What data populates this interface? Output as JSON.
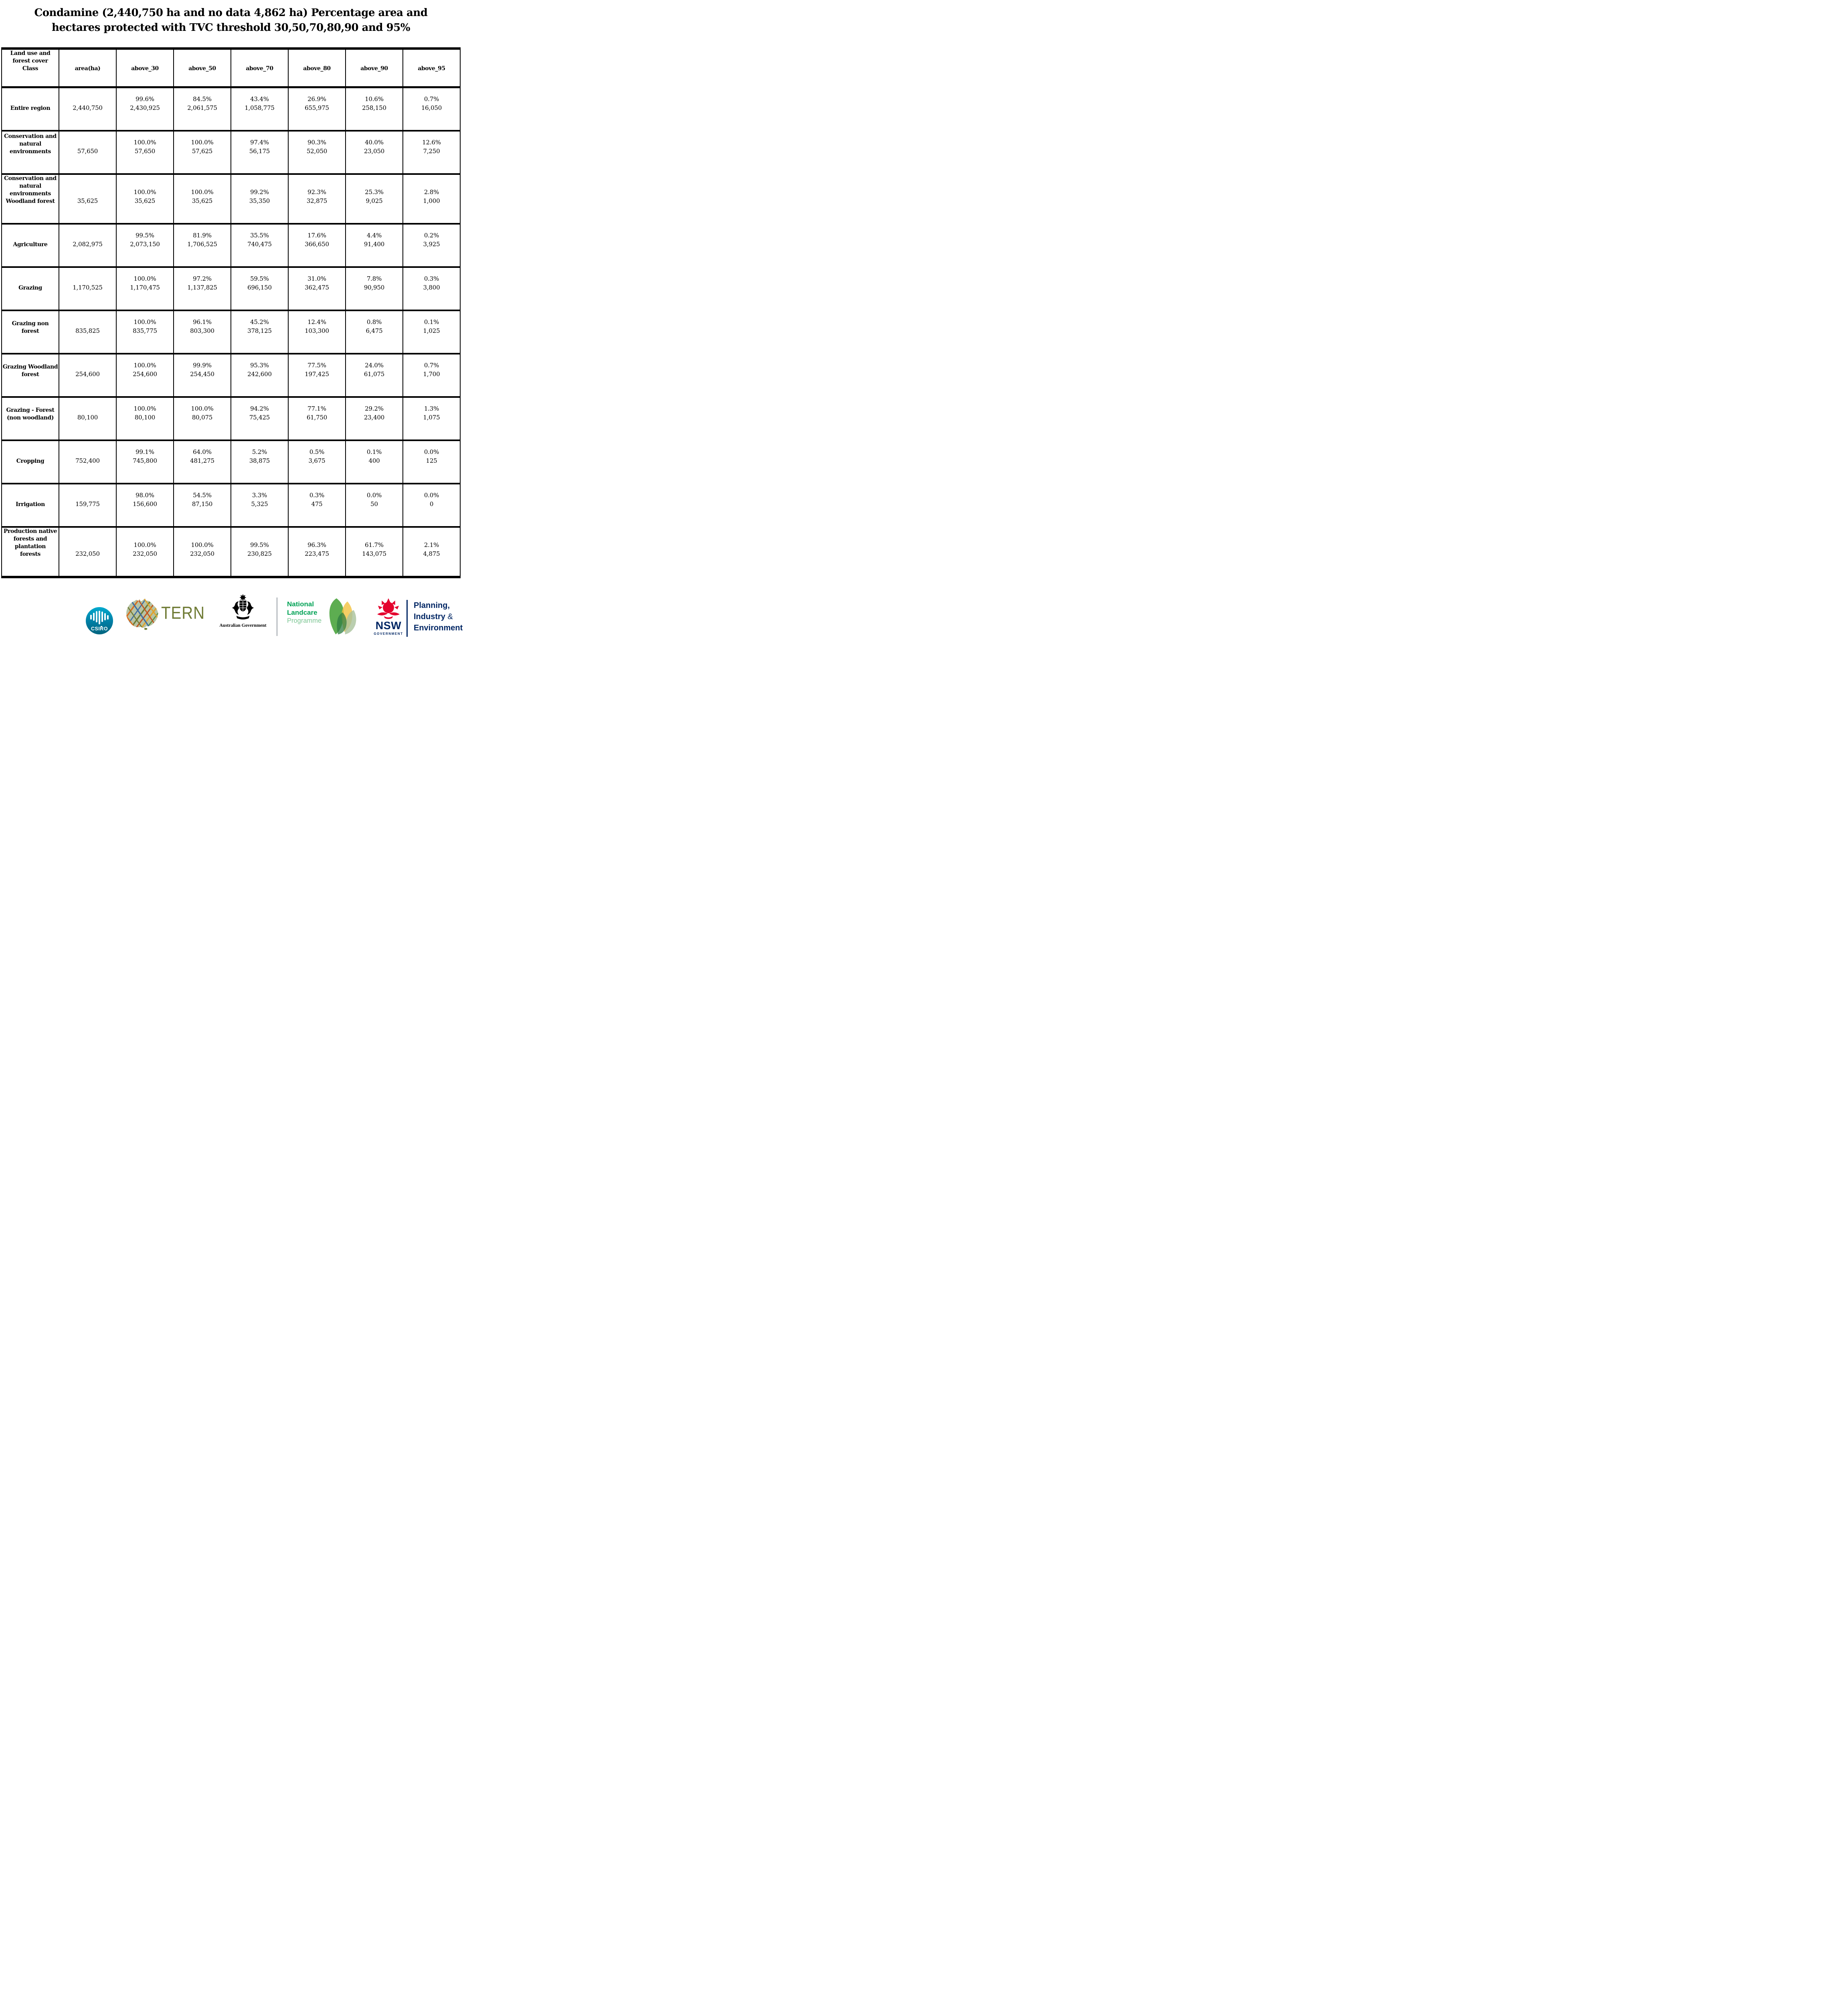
{
  "title": {
    "lines": [
      "Condamine (2,440,750 ha and no data 4,862 ha) Percentage area and",
      "hectares protected with TVC threshold 30,50,70,80,90 and 95%"
    ]
  },
  "table": {
    "header": {
      "class_col_lines": [
        "Land use and",
        "forest cover",
        "Class"
      ],
      "cols": [
        "area(ha)",
        "above_30",
        "above_50",
        "above_70",
        "above_80",
        "above_90",
        "above_95"
      ]
    },
    "rows": [
      {
        "label_lines": [
          "Entire region"
        ],
        "area": "2,440,750",
        "cells": [
          [
            "99.6%",
            "2,430,925"
          ],
          [
            "84.5%",
            "2,061,575"
          ],
          [
            "43.4%",
            "1,058,775"
          ],
          [
            "26.9%",
            "655,975"
          ],
          [
            "10.6%",
            "258,150"
          ],
          [
            "0.7%",
            "16,050"
          ]
        ]
      },
      {
        "label_lines": [
          "Conservation and",
          "natural",
          "environments"
        ],
        "area": "57,650",
        "cells": [
          [
            "100.0%",
            "57,650"
          ],
          [
            "100.0%",
            "57,625"
          ],
          [
            "97.4%",
            "56,175"
          ],
          [
            "90.3%",
            "52,050"
          ],
          [
            "40.0%",
            "23,050"
          ],
          [
            "12.6%",
            "7,250"
          ]
        ]
      },
      {
        "label_lines": [
          "Conservation and",
          "natural",
          "environments",
          "Woodland forest"
        ],
        "area": "35,625",
        "cells": [
          [
            "100.0%",
            "35,625"
          ],
          [
            "100.0%",
            "35,625"
          ],
          [
            "99.2%",
            "35,350"
          ],
          [
            "92.3%",
            "32,875"
          ],
          [
            "25.3%",
            "9,025"
          ],
          [
            "2.8%",
            "1,000"
          ]
        ]
      },
      {
        "label_lines": [
          "Agriculture"
        ],
        "area": "2,082,975",
        "cells": [
          [
            "99.5%",
            "2,073,150"
          ],
          [
            "81.9%",
            "1,706,525"
          ],
          [
            "35.5%",
            "740,475"
          ],
          [
            "17.6%",
            "366,650"
          ],
          [
            "4.4%",
            "91,400"
          ],
          [
            "0.2%",
            "3,925"
          ]
        ]
      },
      {
        "label_lines": [
          "Grazing"
        ],
        "area": "1,170,525",
        "cells": [
          [
            "100.0%",
            "1,170,475"
          ],
          [
            "97.2%",
            "1,137,825"
          ],
          [
            "59.5%",
            "696,150"
          ],
          [
            "31.0%",
            "362,475"
          ],
          [
            "7.8%",
            "90,950"
          ],
          [
            "0.3%",
            "3,800"
          ]
        ]
      },
      {
        "label_lines": [
          "Grazing non",
          "forest"
        ],
        "area": "835,825",
        "cells": [
          [
            "100.0%",
            "835,775"
          ],
          [
            "96.1%",
            "803,300"
          ],
          [
            "45.2%",
            "378,125"
          ],
          [
            "12.4%",
            "103,300"
          ],
          [
            "0.8%",
            "6,475"
          ],
          [
            "0.1%",
            "1,025"
          ]
        ]
      },
      {
        "label_lines": [
          "Grazing Woodland",
          "forest"
        ],
        "area": "254,600",
        "cells": [
          [
            "100.0%",
            "254,600"
          ],
          [
            "99.9%",
            "254,450"
          ],
          [
            "95.3%",
            "242,600"
          ],
          [
            "77.5%",
            "197,425"
          ],
          [
            "24.0%",
            "61,075"
          ],
          [
            "0.7%",
            "1,700"
          ]
        ]
      },
      {
        "label_lines": [
          "Grazing - Forest",
          "(non woodland)"
        ],
        "area": "80,100",
        "cells": [
          [
            "100.0%",
            "80,100"
          ],
          [
            "100.0%",
            "80,075"
          ],
          [
            "94.2%",
            "75,425"
          ],
          [
            "77.1%",
            "61,750"
          ],
          [
            "29.2%",
            "23,400"
          ],
          [
            "1.3%",
            "1,075"
          ]
        ]
      },
      {
        "label_lines": [
          "Cropping"
        ],
        "area": "752,400",
        "cells": [
          [
            "99.1%",
            "745,800"
          ],
          [
            "64.0%",
            "481,275"
          ],
          [
            "5.2%",
            "38,875"
          ],
          [
            "0.5%",
            "3,675"
          ],
          [
            "0.1%",
            "400"
          ],
          [
            "0.0%",
            "125"
          ]
        ]
      },
      {
        "label_lines": [
          "Irrigation"
        ],
        "area": "159,775",
        "cells": [
          [
            "98.0%",
            "156,600"
          ],
          [
            "54.5%",
            "87,150"
          ],
          [
            "3.3%",
            "5,325"
          ],
          [
            "0.3%",
            "475"
          ],
          [
            "0.0%",
            "50"
          ],
          [
            "0.0%",
            "0"
          ]
        ]
      },
      {
        "label_lines": [
          "Production native",
          "forests and",
          "plantation",
          "forests"
        ],
        "area": "232,050",
        "cells": [
          [
            "100.0%",
            "232,050"
          ],
          [
            "100.0%",
            "232,050"
          ],
          [
            "99.5%",
            "230,825"
          ],
          [
            "96.3%",
            "223,475"
          ],
          [
            "61.7%",
            "143,075"
          ],
          [
            "2.1%",
            "4,875"
          ]
        ]
      }
    ]
  },
  "logos": {
    "csiro": {
      "label": "CSIRO",
      "teal": "#00a9ce"
    },
    "tern": {
      "label": "TERN",
      "olive": "#6f7b35"
    },
    "aus_gov": {
      "label": "Australian Government"
    },
    "landcare": {
      "line1": "National",
      "line2": "Landcare",
      "line3": "Programme",
      "green": "#00a255",
      "light_green": "#7cc693"
    },
    "nsw": {
      "label": "NSW",
      "sub_label": "GOVERNMENT",
      "navy": "#002664",
      "red": "#e4032e"
    },
    "planning": {
      "line1": "Planning,",
      "line2": "Industry",
      "amp": "&",
      "line3": "Environment"
    }
  }
}
